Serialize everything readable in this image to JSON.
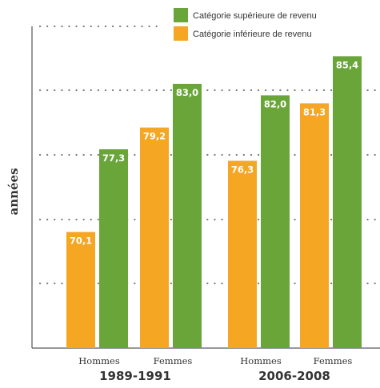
{
  "chart_data": {
    "type": "bar",
    "title": "",
    "ylabel": "années",
    "xlabel": "",
    "ylim": [
      60,
      88
    ],
    "grid": true,
    "legend_position": "top-right",
    "groups": [
      {
        "label": "1989-1991",
        "categories": [
          "Hommes",
          "Femmes"
        ]
      },
      {
        "label": "2006-2008",
        "categories": [
          "Hommes",
          "Femmes"
        ]
      }
    ],
    "categories": [
      "Hommes 1989-1991",
      "Femmes 1989-1991",
      "Hommes 2006-2008",
      "Femmes 2006-2008"
    ],
    "series": [
      {
        "name": "Catégorie inférieure de revenu",
        "color": "#f5a623",
        "values": [
          70.1,
          79.2,
          76.3,
          81.3
        ],
        "labels": [
          "70,1",
          "79,2",
          "76,3",
          "81,3"
        ]
      },
      {
        "name": "Catégorie supérieure de revenu",
        "color": "#6aa53a",
        "values": [
          77.3,
          83.0,
          82.0,
          85.4
        ],
        "labels": [
          "77,3",
          "83,0",
          "82,0",
          "85,4"
        ]
      }
    ],
    "legend_order": [
      1,
      0
    ]
  }
}
